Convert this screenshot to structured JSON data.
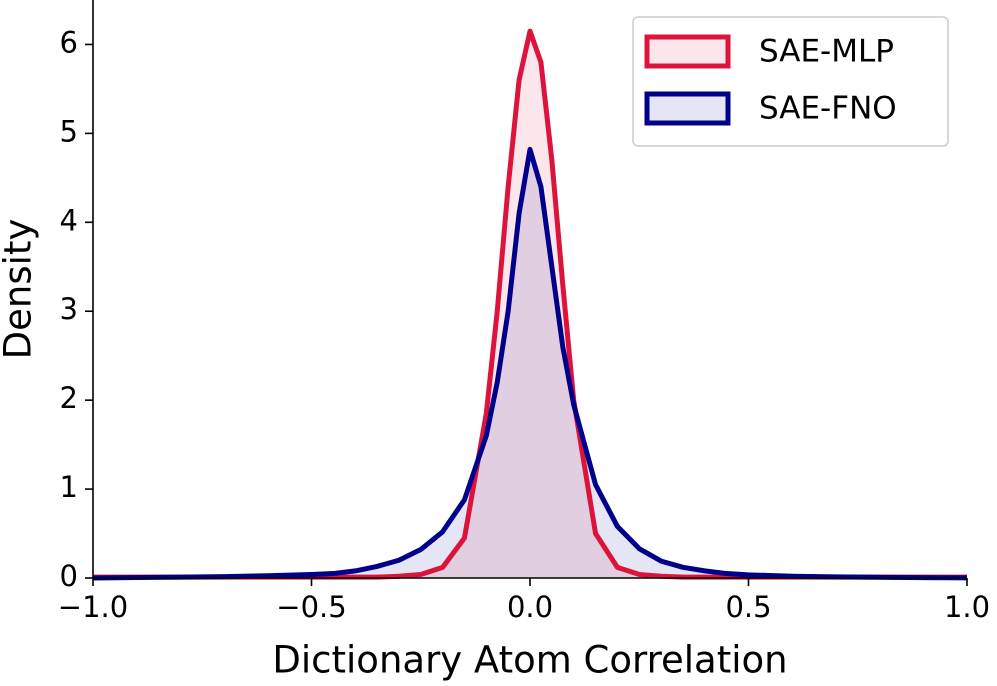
{
  "chart_data": {
    "type": "kde",
    "x_label": "Dictionary Atom Correlation",
    "y_label": "Density",
    "x": [
      -1.0,
      -0.9,
      -0.8,
      -0.7,
      -0.6,
      -0.5,
      -0.45,
      -0.4,
      -0.35,
      -0.3,
      -0.25,
      -0.2,
      -0.15,
      -0.1,
      -0.075,
      -0.05,
      -0.025,
      0.0,
      0.025,
      0.05,
      0.075,
      0.1,
      0.15,
      0.2,
      0.25,
      0.3,
      0.35,
      0.4,
      0.45,
      0.5,
      0.6,
      0.7,
      0.8,
      0.9,
      1.0
    ],
    "series": [
      {
        "name": "SAE-MLP",
        "color": "#dc143c",
        "values": [
          0.01,
          0.01,
          0.01,
          0.01,
          0.01,
          0.01,
          0.01,
          0.01,
          0.01,
          0.02,
          0.04,
          0.12,
          0.45,
          1.85,
          3.0,
          4.4,
          5.6,
          6.15,
          5.8,
          4.7,
          3.3,
          2.0,
          0.5,
          0.12,
          0.04,
          0.02,
          0.01,
          0.01,
          0.01,
          0.01,
          0.01,
          0.01,
          0.01,
          0.01,
          0.01
        ]
      },
      {
        "name": "SAE-FNO",
        "color": "#00008b",
        "values": [
          0.0,
          0.005,
          0.01,
          0.015,
          0.025,
          0.04,
          0.05,
          0.08,
          0.13,
          0.2,
          0.32,
          0.52,
          0.88,
          1.6,
          2.2,
          3.0,
          4.1,
          4.82,
          4.4,
          3.5,
          2.6,
          1.95,
          1.05,
          0.58,
          0.33,
          0.19,
          0.12,
          0.08,
          0.05,
          0.035,
          0.02,
          0.012,
          0.008,
          0.004,
          0.002
        ]
      }
    ],
    "xlim": [
      -1.0,
      1.0
    ],
    "xticks": [
      {
        "value": -1.0,
        "label": "−1.0"
      },
      {
        "value": -0.5,
        "label": "−0.5"
      },
      {
        "value": 0.0,
        "label": "0.0"
      },
      {
        "value": 0.5,
        "label": "0.5"
      },
      {
        "value": 1.0,
        "label": "1.0"
      }
    ],
    "ylim": [
      0,
      6.5
    ],
    "yticks": [
      0,
      1,
      2,
      3,
      4,
      5,
      6
    ],
    "legend": "upper right"
  }
}
